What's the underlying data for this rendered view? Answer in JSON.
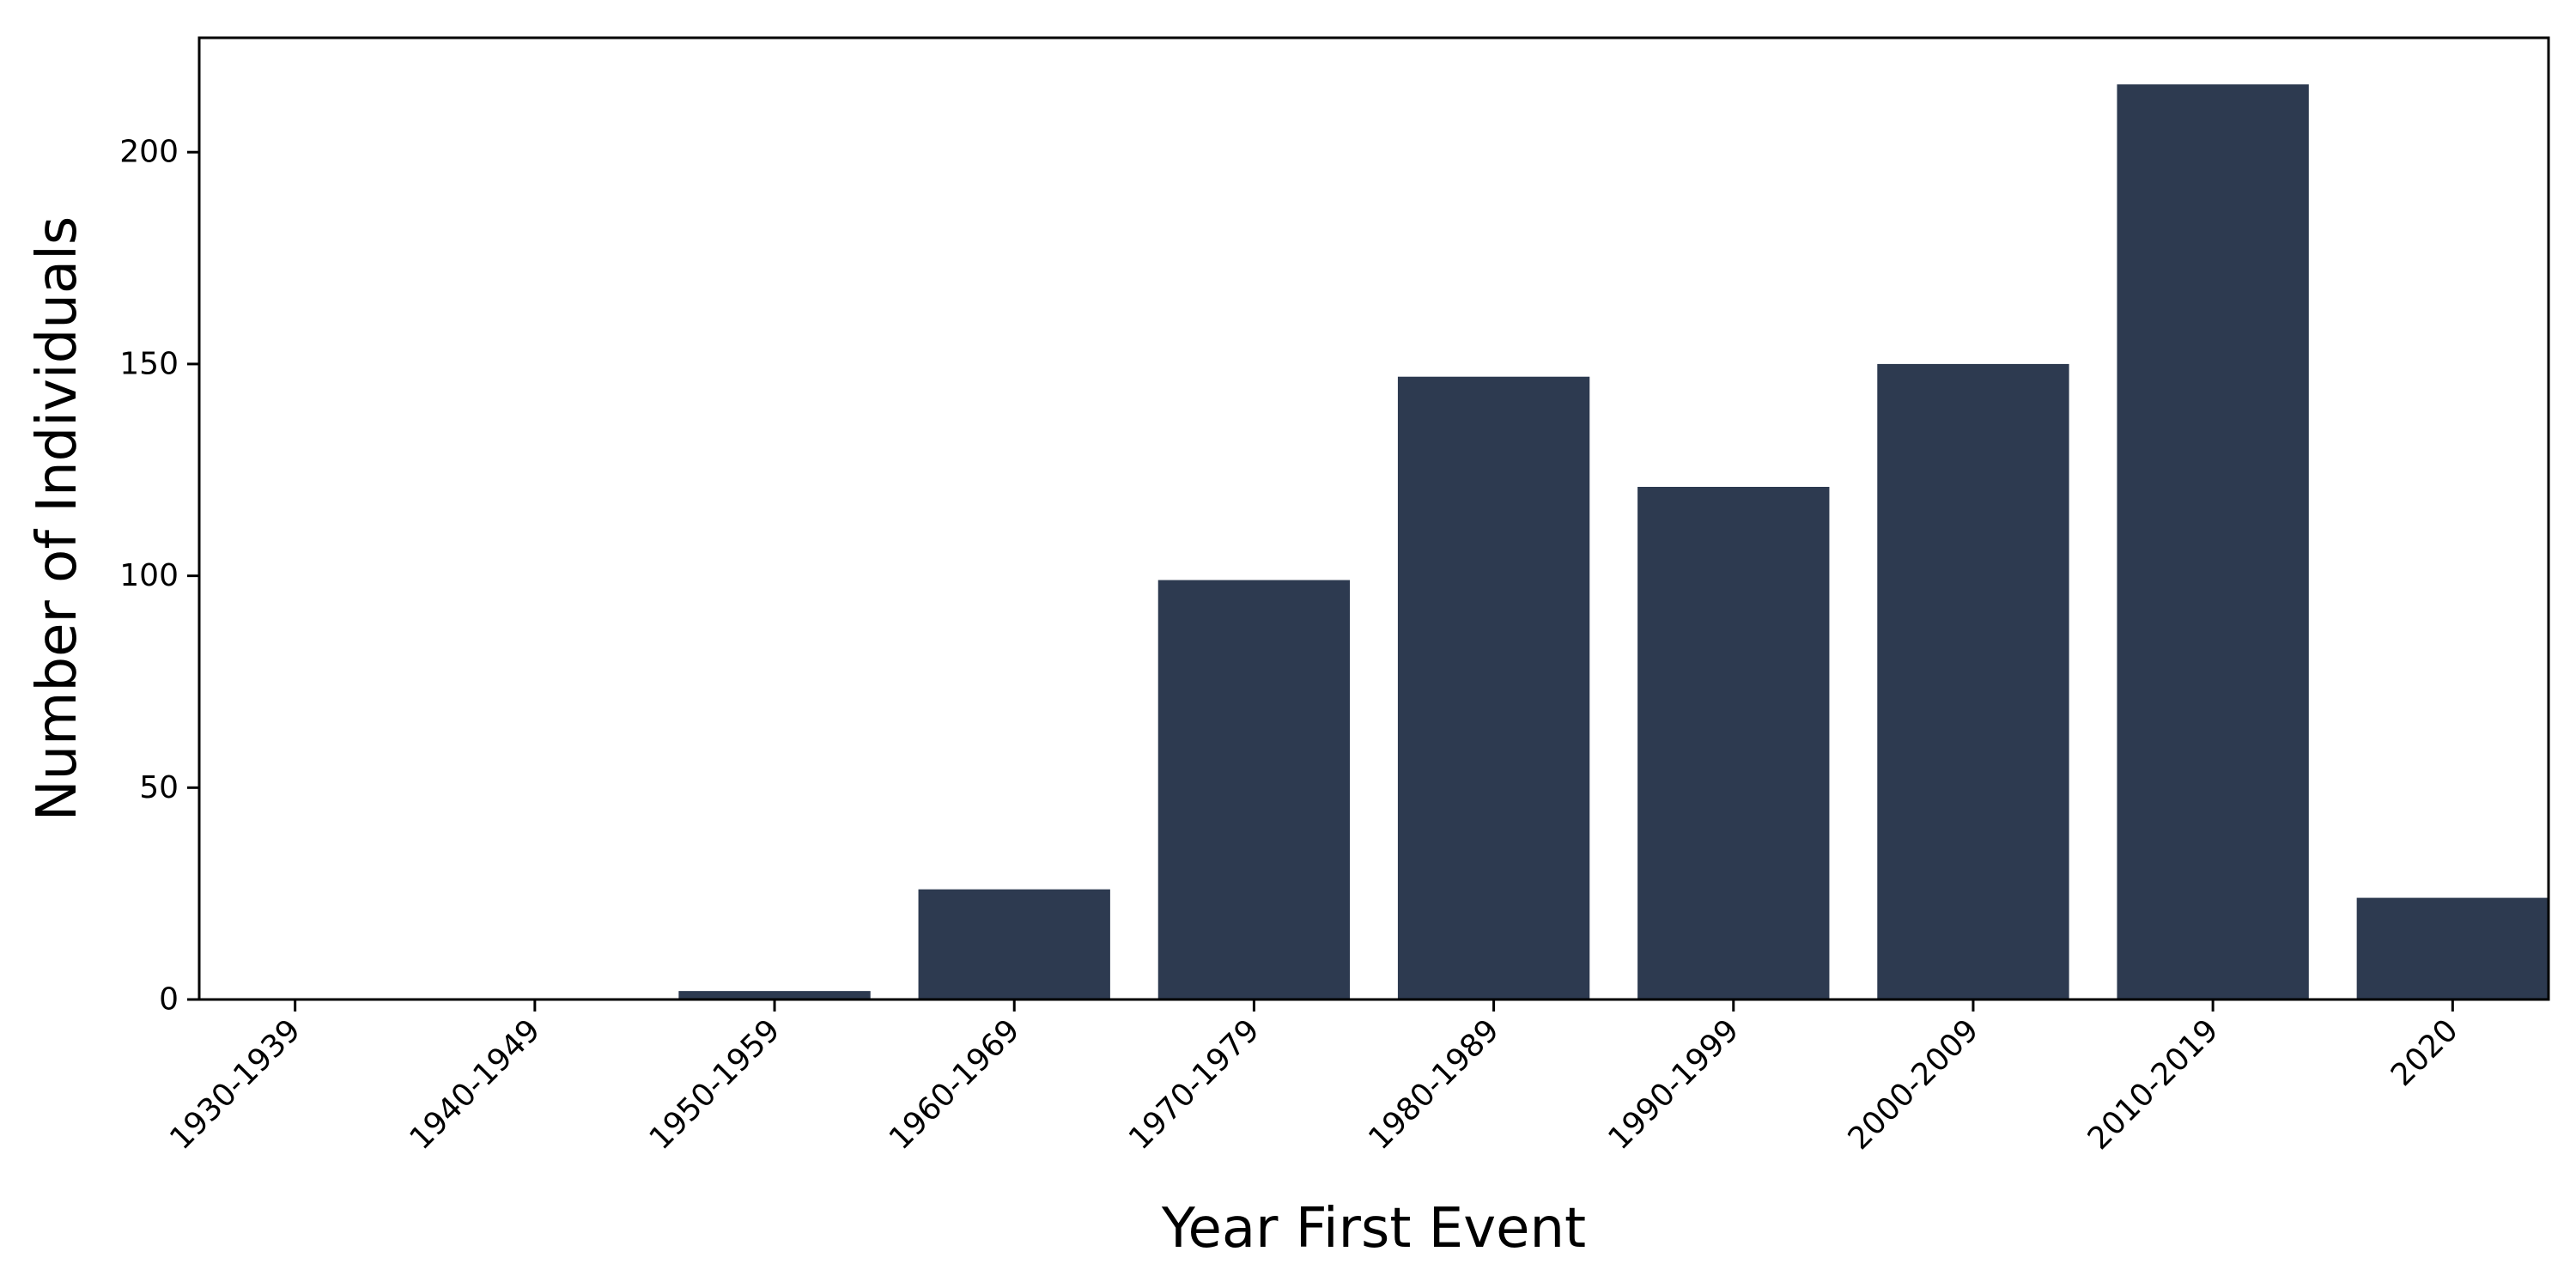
{
  "chart_data": {
    "type": "bar",
    "title": "",
    "xlabel": "Year First Event",
    "ylabel": "Number of Individuals",
    "categories": [
      "1930-1939",
      "1940-1949",
      "1950-1959",
      "1960-1969",
      "1970-1979",
      "1980-1989",
      "1990-1999",
      "2000-2009",
      "2010-2019",
      "2020"
    ],
    "values": [
      0,
      0,
      2,
      26,
      99,
      147,
      121,
      150,
      216,
      24
    ],
    "ylim": [
      0,
      227
    ],
    "yticks": [
      0,
      50,
      100,
      150,
      200
    ],
    "grid": false,
    "legend": "none",
    "bar_color": "#2d3a50"
  }
}
